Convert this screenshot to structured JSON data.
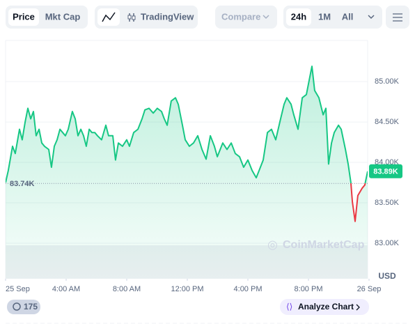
{
  "toolbar": {
    "price": "Price",
    "mkt_cap": "Mkt Cap",
    "tradingview": "TradingView",
    "compare": "Compare",
    "range_24h": "24h",
    "range_1m": "1M",
    "range_all": "All"
  },
  "chart_data": {
    "type": "line",
    "x": [
      0,
      0.18,
      0.46,
      0.64,
      0.92,
      1.1,
      1.29,
      1.47,
      1.66,
      1.84,
      2.02,
      2.21,
      2.39,
      2.57,
      2.85,
      3.03,
      3.22,
      3.4,
      3.59,
      3.77,
      3.95,
      4.14,
      4.41,
      4.6,
      4.78,
      4.97,
      5.15,
      5.33,
      5.52,
      5.7,
      5.89,
      6.07,
      6.34,
      6.62,
      6.8,
      7.08,
      7.26,
      7.45,
      7.72,
      8,
      8.18,
      8.46,
      8.74,
      9.01,
      9.2,
      9.47,
      9.75,
      10.02,
      10.3,
      10.48,
      10.67,
      10.94,
      11.22,
      11.4,
      11.68,
      11.86,
      12.14,
      12.41,
      12.69,
      12.97,
      13.24,
      13.52,
      13.79,
      13.98,
      14.34,
      14.62,
      14.9,
      15.17,
      15.45,
      15.72,
      16,
      16.28,
      16.55,
      16.74,
      17.01,
      17.29,
      17.56,
      17.84,
      18.11,
      18.39,
      18.57,
      18.85,
      19.03,
      19.31,
      19.59,
      19.86,
      20.05,
      20.23,
      20.41,
      20.69,
      20.97,
      21.15,
      21.33,
      21.52,
      21.7,
      21.98,
      22.16,
      22.44,
      22.62,
      22.8,
      22.9,
      23.08,
      23.26,
      23.54,
      23.72,
      23.91
    ],
    "values": [
      83750,
      83900,
      84200,
      84110,
      84410,
      84280,
      84500,
      84670,
      84540,
      84630,
      84330,
      84410,
      84240,
      84200,
      84160,
      83940,
      84200,
      84280,
      84410,
      84370,
      84330,
      84410,
      84630,
      84540,
      84330,
      84410,
      84330,
      84200,
      84410,
      84370,
      84370,
      84330,
      84280,
      84460,
      84330,
      84330,
      84030,
      84240,
      84200,
      84280,
      84200,
      84370,
      84410,
      84540,
      84650,
      84670,
      84610,
      84670,
      84630,
      84540,
      84460,
      84760,
      84800,
      84720,
      84460,
      84280,
      84200,
      84240,
      84330,
      84160,
      84040,
      84330,
      84200,
      84070,
      84240,
      84160,
      84240,
      84110,
      84070,
      83940,
      84030,
      83900,
      83810,
      83900,
      84030,
      84370,
      84410,
      84280,
      84500,
      84720,
      84800,
      84720,
      84590,
      84410,
      84800,
      84840,
      85020,
      85190,
      84890,
      84800,
      84590,
      84670,
      83980,
      84240,
      84370,
      84460,
      84410,
      84160,
      83980,
      83750,
      83510,
      83270,
      83590,
      83680,
      83720,
      83890
    ],
    "color": "#16c784",
    "down_color": "#ea3943",
    "reference": {
      "value": 83740,
      "label": "83.74K"
    },
    "last": {
      "value": 83890,
      "label": "83.89K"
    },
    "xlim": [
      0,
      24
    ],
    "xticks": [
      {
        "value": 0,
        "label": "25 Sep"
      },
      {
        "value": 4,
        "label": "4:00 AM"
      },
      {
        "value": 8,
        "label": "8:00 AM"
      },
      {
        "value": 12,
        "label": "12:00 PM"
      },
      {
        "value": 16,
        "label": "4:00 PM"
      },
      {
        "value": 20,
        "label": "8:00 PM"
      },
      {
        "value": 24,
        "label": "26 Sep"
      }
    ],
    "ylim": [
      82560,
      85510
    ],
    "yticks": [
      {
        "value": 83000,
        "label": "83.00K"
      },
      {
        "value": 83500,
        "label": "83.50K"
      },
      {
        "value": 84000,
        "label": "84.00K"
      },
      {
        "value": 84500,
        "label": "84.50K"
      },
      {
        "value": 85000,
        "label": "85.00K"
      }
    ],
    "y_unit": "USD",
    "grid": true,
    "watermark": "CoinMarketCap"
  },
  "footer": {
    "count": "175",
    "analyze": "Analyze Chart"
  }
}
